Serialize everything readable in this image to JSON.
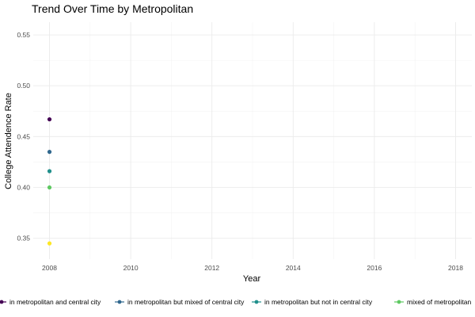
{
  "chart_data": {
    "type": "scatter",
    "title": "Trend Over Time by Metropolitan",
    "xlabel": "Year",
    "ylabel": "College Attendence Rate",
    "xlim": [
      2007.6,
      2018.4
    ],
    "ylim": [
      0.3295,
      0.5625
    ],
    "xticks": [
      2008,
      2010,
      2012,
      2014,
      2016,
      2018
    ],
    "xtick_labels": [
      "2008",
      "2010",
      "2012",
      "2014",
      "2016",
      "2018"
    ],
    "yticks": [
      0.35,
      0.4,
      0.45,
      0.5,
      0.55
    ],
    "ytick_labels": [
      "0.35",
      "0.40",
      "0.45",
      "0.50",
      "0.55"
    ],
    "grid": true,
    "legend_position": "bottom",
    "series": [
      {
        "name": "in metropolitan and central city",
        "color": "#440154",
        "x": [
          2008
        ],
        "y": [
          0.467
        ]
      },
      {
        "name": "in metropolitan but mixed of central city",
        "color": "#31688e",
        "x": [
          2008
        ],
        "y": [
          0.435
        ]
      },
      {
        "name": "in metropolitan but not in central city",
        "color": "#21908c",
        "x": [
          2008
        ],
        "y": [
          0.416
        ]
      },
      {
        "name": "mixed of metropolitan",
        "color": "#5ec962",
        "x": [
          2008
        ],
        "y": [
          0.4
        ]
      },
      {
        "name": "",
        "color": "#fde725",
        "x": [
          2008
        ],
        "y": [
          0.345
        ]
      }
    ]
  }
}
